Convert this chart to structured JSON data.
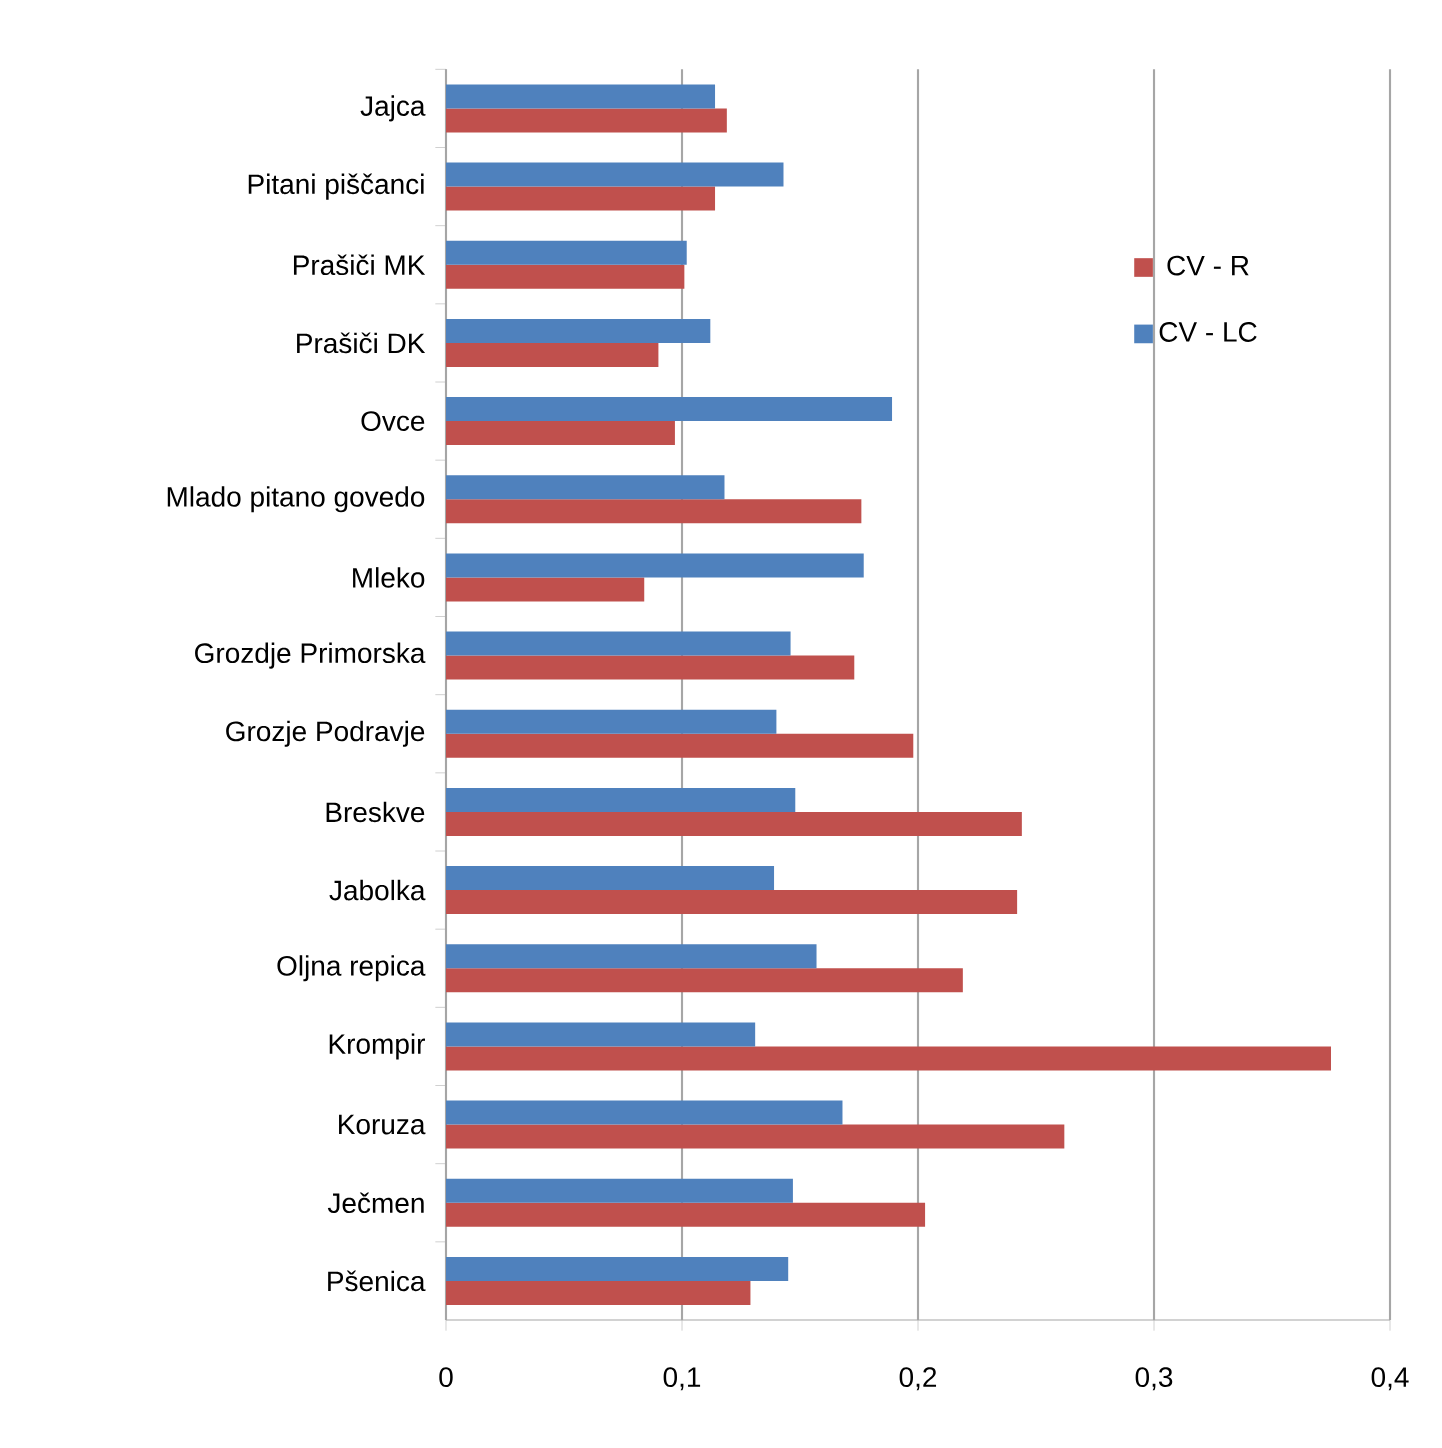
{
  "chart_data": {
    "type": "bar",
    "orientation": "horizontal",
    "categories": [
      "Jajca",
      "Pitani piščanci",
      "Prašiči MK",
      "Prašiči DK",
      "Ovce",
      "Mlado pitano govedo",
      "Mleko",
      "Grozdje Primorska",
      "Grozje Podravje",
      "Breskve",
      "Jabolka",
      "Oljna repica",
      "Krompir",
      "Koruza",
      "Ječmen",
      "Pšenica"
    ],
    "series": [
      {
        "name": "CV - R",
        "color": "#c0504d",
        "values": [
          0.119,
          0.114,
          0.101,
          0.09,
          0.097,
          0.176,
          0.084,
          0.173,
          0.198,
          0.244,
          0.242,
          0.219,
          0.375,
          0.262,
          0.203,
          0.129
        ]
      },
      {
        "name": "CV - LC",
        "color": "#4f81bd",
        "values": [
          0.114,
          0.143,
          0.102,
          0.112,
          0.189,
          0.118,
          0.177,
          0.146,
          0.14,
          0.148,
          0.139,
          0.157,
          0.131,
          0.168,
          0.147,
          0.145
        ]
      }
    ],
    "xlim": [
      0,
      0.4
    ],
    "xticks": [
      {
        "value": 0,
        "label": "0"
      },
      {
        "value": 0.1,
        "label": "0,1"
      },
      {
        "value": 0.2,
        "label": "0,2"
      },
      {
        "value": 0.3,
        "label": "0,3"
      },
      {
        "value": 0.4,
        "label": "0,4"
      }
    ],
    "grid": "x",
    "legend": "top right"
  }
}
